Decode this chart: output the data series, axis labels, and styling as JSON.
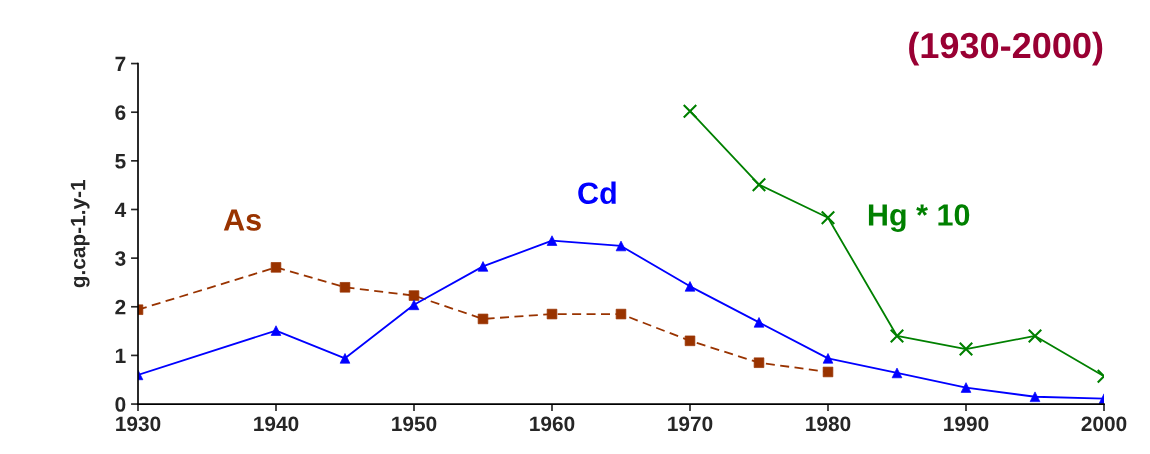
{
  "chart_data": {
    "type": "line",
    "title": "(1930-2000)",
    "ylabel": "g.cap-1.y-1",
    "x": [
      1930,
      1940,
      1945,
      1950,
      1955,
      1960,
      1965,
      1970,
      1975,
      1980,
      1985,
      1990,
      1995,
      2000
    ],
    "series": [
      {
        "name": "As",
        "color": "#993300",
        "marker": "square",
        "line_style": "dashed",
        "x": [
          1930,
          1940,
          1945,
          1950,
          1955,
          1960,
          1965,
          1970,
          1975,
          1980
        ],
        "values": [
          1.94,
          2.81,
          2.4,
          2.23,
          1.75,
          1.85,
          1.85,
          1.3,
          0.85,
          0.66
        ]
      },
      {
        "name": "Cd",
        "color": "#0000ff",
        "marker": "triangle",
        "line_style": "solid",
        "values": [
          0.6,
          1.51,
          0.94,
          2.04,
          2.83,
          3.36,
          3.25,
          2.42,
          1.68,
          0.94,
          0.64,
          0.34,
          0.15,
          0.11
        ]
      },
      {
        "name": "Hg * 10",
        "color": "#008000",
        "marker": "cross",
        "line_style": "solid",
        "x": [
          1970,
          1975,
          1980,
          1985,
          1990,
          1995,
          2000
        ],
        "values": [
          6.02,
          4.51,
          3.83,
          1.4,
          1.13,
          1.4,
          0.57
        ]
      }
    ],
    "xlim": [
      1930,
      2000
    ],
    "xticks": [
      1930,
      1940,
      1950,
      1960,
      1970,
      1980,
      1990,
      2000
    ],
    "ylim": [
      0,
      7
    ],
    "yticks": [
      0,
      1,
      2,
      3,
      4,
      5,
      6,
      7
    ],
    "grid": false,
    "legend": false
  }
}
